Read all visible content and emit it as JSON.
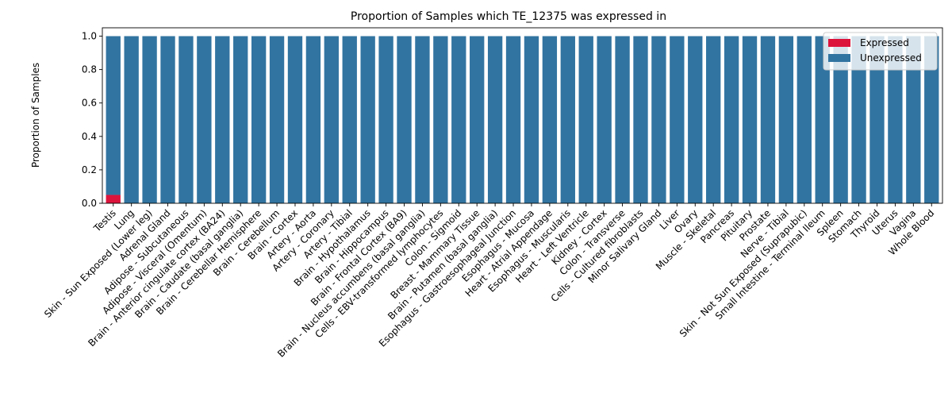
{
  "chart_data": {
    "type": "bar",
    "stacked": true,
    "title": "Proportion of Samples which TE_12375 was expressed in",
    "xlabel": "",
    "ylabel": "Proportion of Samples",
    "ylim": [
      0,
      1.05
    ],
    "yticks": [
      "0.0",
      "0.2",
      "0.4",
      "0.6",
      "0.8",
      "1.0"
    ],
    "grid": false,
    "legend_position": "top-right",
    "categories": [
      "Testis",
      "Lung",
      "Skin - Sun Exposed (Lower leg)",
      "Adrenal Gland",
      "Adipose - Subcutaneous",
      "Adipose - Visceral (Omentum)",
      "Brain - Anterior cingulate cortex (BA24)",
      "Brain - Caudate (basal ganglia)",
      "Brain - Cerebellar Hemisphere",
      "Brain - Cerebellum",
      "Brain - Cortex",
      "Artery - Aorta",
      "Artery - Coronary",
      "Artery - Tibial",
      "Brain - Hypothalamus",
      "Brain - Hippocampus",
      "Brain - Frontal Cortex (BA9)",
      "Brain - Nucleus accumbens (basal ganglia)",
      "Cells - EBV-transformed lymphocytes",
      "Colon - Sigmoid",
      "Breast - Mammary Tissue",
      "Brain - Putamen (basal ganglia)",
      "Esophagus - Gastroesophageal Junction",
      "Esophagus - Mucosa",
      "Heart - Atrial Appendage",
      "Esophagus - Muscularis",
      "Heart - Left Ventricle",
      "Kidney - Cortex",
      "Colon - Transverse",
      "Cells - Cultured fibroblasts",
      "Minor Salivary Gland",
      "Liver",
      "Ovary",
      "Muscle - Skeletal",
      "Pancreas",
      "Pituitary",
      "Prostate",
      "Nerve - Tibial",
      "Skin - Not Sun Exposed (Suprapubic)",
      "Small Intestine - Terminal Ileum",
      "Spleen",
      "Stomach",
      "Thyroid",
      "Uterus",
      "Vagina",
      "Whole Blood"
    ],
    "series": [
      {
        "name": "Expressed",
        "color": "#dc143c",
        "values": [
          0.05,
          0,
          0,
          0,
          0,
          0,
          0,
          0,
          0,
          0,
          0,
          0,
          0,
          0,
          0,
          0,
          0,
          0,
          0,
          0,
          0,
          0,
          0,
          0,
          0,
          0,
          0,
          0,
          0,
          0,
          0,
          0,
          0,
          0,
          0,
          0,
          0,
          0,
          0,
          0,
          0,
          0,
          0,
          0,
          0,
          0
        ]
      },
      {
        "name": "Unexpressed",
        "color": "#3274a1",
        "values": [
          0.95,
          1,
          1,
          1,
          1,
          1,
          1,
          1,
          1,
          1,
          1,
          1,
          1,
          1,
          1,
          1,
          1,
          1,
          1,
          1,
          1,
          1,
          1,
          1,
          1,
          1,
          1,
          1,
          1,
          1,
          1,
          1,
          1,
          1,
          1,
          1,
          1,
          1,
          1,
          1,
          1,
          1,
          1,
          1,
          1,
          1
        ]
      }
    ]
  }
}
